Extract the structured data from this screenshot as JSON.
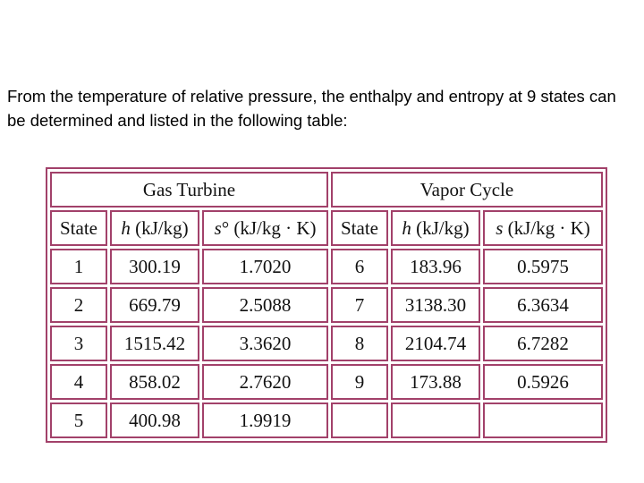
{
  "intro": "From the temperature of relative pressure, the enthalpy and entropy at 9 states can be determined and listed in the following table:",
  "table": {
    "groups": [
      "Gas Turbine",
      "Vapor Cycle"
    ],
    "columns": [
      {
        "symbol": "State",
        "rest": ""
      },
      {
        "symbol": "h",
        "rest": " (kJ/kg)"
      },
      {
        "symbol": "s",
        "rest": "° (kJ/kg · K)"
      },
      {
        "symbol": "State",
        "rest": ""
      },
      {
        "symbol": "h",
        "rest": " (kJ/kg)"
      },
      {
        "symbol": "s",
        "rest": " (kJ/kg · K)"
      }
    ],
    "rows": [
      [
        "1",
        "300.19",
        "1.7020",
        "6",
        "183.96",
        "0.5975"
      ],
      [
        "2",
        "669.79",
        "2.5088",
        "7",
        "3138.30",
        "6.3634"
      ],
      [
        "3",
        "1515.42",
        "3.3620",
        "8",
        "2104.74",
        "6.7282"
      ],
      [
        "4",
        "858.02",
        "2.7620",
        "9",
        "173.88",
        "0.5926"
      ],
      [
        "5",
        "400.98",
        "1.9919"
      ]
    ]
  }
}
